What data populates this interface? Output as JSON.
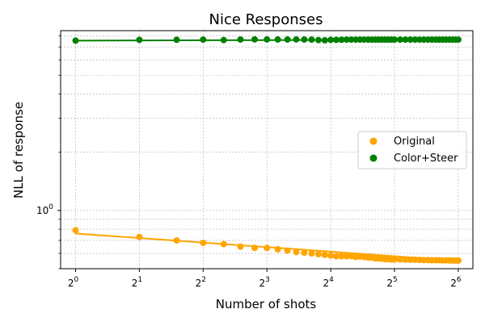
{
  "chart_data": {
    "type": "scatter",
    "title": "Nice Responses",
    "xlabel": "Number of shots",
    "ylabel": "NLL of response",
    "x_scale": "log2",
    "y_scale": "log",
    "xlim": [
      0.85,
      75
    ],
    "ylim": [
      0.5,
      8.5
    ],
    "x_ticks": [
      1,
      2,
      4,
      8,
      16,
      32,
      64
    ],
    "x_tick_labels": [
      {
        "base": "2",
        "exp": "0"
      },
      {
        "base": "2",
        "exp": "1"
      },
      {
        "base": "2",
        "exp": "2"
      },
      {
        "base": "2",
        "exp": "3"
      },
      {
        "base": "2",
        "exp": "4"
      },
      {
        "base": "2",
        "exp": "5"
      },
      {
        "base": "2",
        "exp": "6"
      }
    ],
    "y_major_ticks": [
      1
    ],
    "y_tick_labels": [
      {
        "base": "10",
        "exp": "0"
      }
    ],
    "grid": true,
    "legend_position": "center-right",
    "series": [
      {
        "name": "Original",
        "color": "#ffa500",
        "x": [
          1,
          2,
          3,
          4,
          5,
          6,
          7,
          8,
          9,
          10,
          11,
          12,
          13,
          14,
          15,
          16,
          17,
          18,
          19,
          20,
          21,
          22,
          23,
          24,
          25,
          26,
          27,
          28,
          29,
          30,
          31,
          32,
          34,
          36,
          38,
          40,
          42,
          44,
          46,
          48,
          50,
          52,
          54,
          56,
          58,
          60,
          62,
          64
        ],
        "y": [
          0.79,
          0.73,
          0.7,
          0.68,
          0.67,
          0.65,
          0.64,
          0.64,
          0.63,
          0.62,
          0.61,
          0.605,
          0.6,
          0.595,
          0.59,
          0.585,
          0.58,
          0.58,
          0.58,
          0.58,
          0.575,
          0.578,
          0.575,
          0.57,
          0.57,
          0.565,
          0.565,
          0.563,
          0.56,
          0.56,
          0.558,
          0.558,
          0.558,
          0.557,
          0.556,
          0.556,
          0.555,
          0.554,
          0.554,
          0.553,
          0.553,
          0.553,
          0.552,
          0.552,
          0.552,
          0.551,
          0.551,
          0.551
        ],
        "fit": {
          "x": [
            1,
            64
          ],
          "y": [
            0.76,
            0.55
          ]
        }
      },
      {
        "name": "Color+Steer",
        "color": "#008000",
        "x": [
          1,
          2,
          3,
          4,
          5,
          6,
          7,
          8,
          9,
          10,
          11,
          12,
          13,
          14,
          15,
          16,
          17,
          18,
          19,
          20,
          21,
          22,
          23,
          24,
          25,
          26,
          27,
          28,
          29,
          30,
          31,
          32,
          34,
          36,
          38,
          40,
          42,
          44,
          46,
          48,
          50,
          52,
          54,
          56,
          58,
          60,
          62,
          64
        ],
        "y": [
          7.55,
          7.62,
          7.63,
          7.64,
          7.6,
          7.65,
          7.66,
          7.66,
          7.65,
          7.65,
          7.66,
          7.65,
          7.64,
          7.6,
          7.58,
          7.62,
          7.62,
          7.63,
          7.64,
          7.64,
          7.64,
          7.64,
          7.64,
          7.64,
          7.64,
          7.64,
          7.64,
          7.64,
          7.64,
          7.64,
          7.64,
          7.64,
          7.64,
          7.64,
          7.64,
          7.64,
          7.64,
          7.64,
          7.64,
          7.64,
          7.64,
          7.64,
          7.64,
          7.64,
          7.64,
          7.64,
          7.64,
          7.64
        ],
        "fit": {
          "x": [
            1,
            64
          ],
          "y": [
            7.55,
            7.64
          ]
        }
      }
    ]
  }
}
